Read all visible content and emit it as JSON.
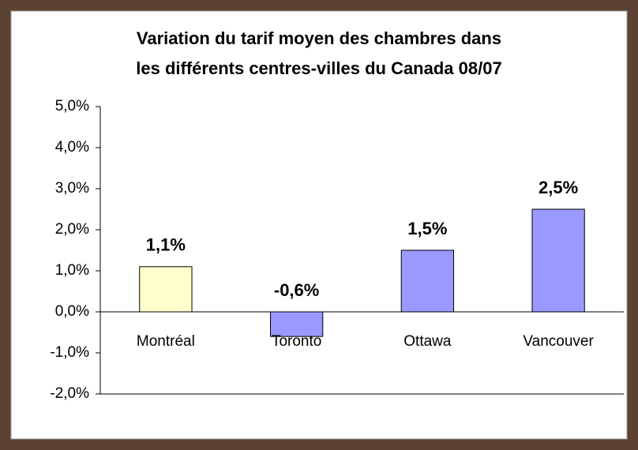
{
  "chart_data": {
    "type": "bar",
    "title": [
      "Variation du tarif moyen des chambres dans",
      "les différents centres-villes du Canada 08/07"
    ],
    "categories": [
      "Montréal",
      "Toronto",
      "Ottawa",
      "Vancouver"
    ],
    "values": [
      1.1,
      -0.6,
      1.5,
      2.5
    ],
    "value_labels": [
      "1,1%",
      "-0,6%",
      "1,5%",
      "2,5%"
    ],
    "colors": [
      "#ffffcc",
      "#9999ff",
      "#9999ff",
      "#9999ff"
    ],
    "ylim": [
      -2.0,
      5.0
    ],
    "yticks": [
      {
        "value": -2.0,
        "label": "-2,0%"
      },
      {
        "value": -1.0,
        "label": "-1,0%"
      },
      {
        "value": 0.0,
        "label": "0,0%"
      },
      {
        "value": 1.0,
        "label": "1,0%"
      },
      {
        "value": 2.0,
        "label": "2,0%"
      },
      {
        "value": 3.0,
        "label": "3,0%"
      },
      {
        "value": 4.0,
        "label": "4,0%"
      },
      {
        "value": 5.0,
        "label": "5,0%"
      }
    ],
    "grid": false
  }
}
